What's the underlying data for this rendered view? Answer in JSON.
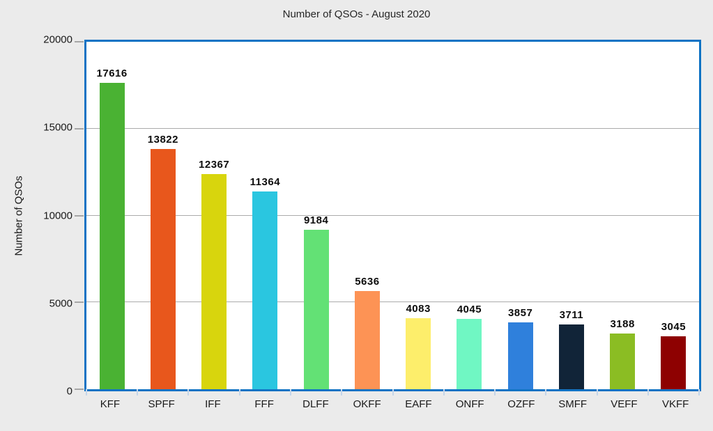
{
  "chart_data": {
    "type": "bar",
    "title": "Number of QSOs - August 2020",
    "ylabel": "Number of QSOs",
    "xlabel": "",
    "categories": [
      "KFF",
      "SPFF",
      "IFF",
      "FFF",
      "DLFF",
      "OKFF",
      "EAFF",
      "ONFF",
      "OZFF",
      "SMFF",
      "VEFF",
      "VKFF"
    ],
    "values": [
      17616,
      13822,
      12367,
      11364,
      9184,
      5636,
      4083,
      4045,
      3857,
      3711,
      3188,
      3045
    ],
    "bar_colors": [
      "#4ab233",
      "#e8571c",
      "#d8d50d",
      "#2ac6e0",
      "#63e175",
      "#fd9355",
      "#fdee6b",
      "#70f7c3",
      "#2f80dc",
      "#112438",
      "#8bbd23",
      "#8e0101"
    ],
    "yticks": [
      0,
      5000,
      10000,
      15000,
      20000
    ],
    "ylim": [
      0,
      20000
    ],
    "grid": "horizontal-only",
    "legend": "none",
    "value_labels": "above-bars"
  },
  "style": {
    "page_bg": "#ebebeb",
    "plot_bg": "#ffffff",
    "plot_border": "#0f73c4",
    "grid_color": "#ababab",
    "y_tick_color": "#a6a6a6",
    "x_tick_color": "#c4d6ea",
    "text_color": "#1a1a1a"
  }
}
